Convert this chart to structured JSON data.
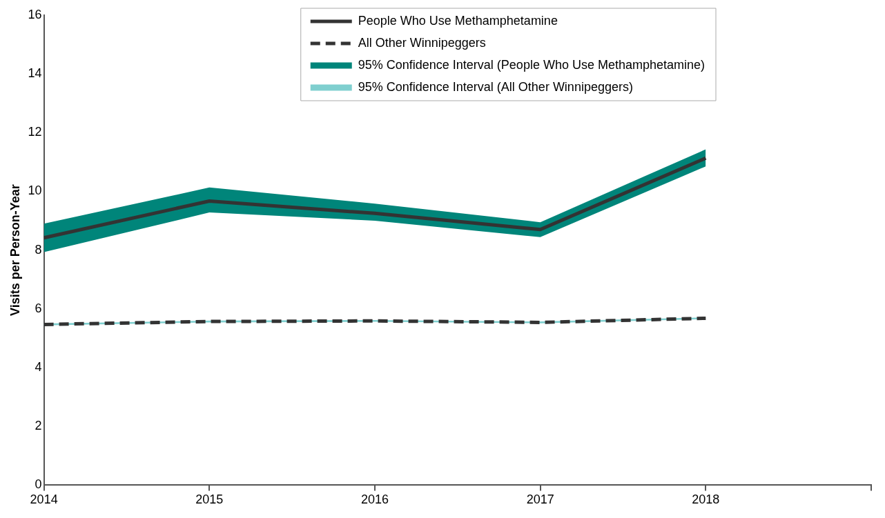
{
  "chart_data": {
    "type": "line",
    "ylabel": "Visits per Person-Year",
    "x": [
      2014,
      2015,
      2016,
      2017,
      2018
    ],
    "xlim": [
      2014,
      2019
    ],
    "xticks": [
      2014,
      2015,
      2016,
      2017,
      2018,
      {
        "value": 2019,
        "label": null
      }
    ],
    "ylim": [
      0,
      16
    ],
    "yticks": [
      0,
      2,
      4,
      6,
      8,
      10,
      12,
      14,
      16
    ],
    "grid": false,
    "legend": "top right",
    "marker": "none",
    "series": [
      {
        "name": "People Who Use Methamphetamine",
        "type": "line",
        "color": "#333333",
        "line_style": "solid",
        "values": [
          8.42,
          9.67,
          9.25,
          8.7,
          11.13
        ]
      },
      {
        "name": "All Other Winnipeggers",
        "type": "line",
        "color": "#333333",
        "line_style": "dashed",
        "values": [
          5.47,
          5.57,
          5.59,
          5.54,
          5.68
        ]
      },
      {
        "name": "95% Confidence Interval (People Who Use Methamphetamine)",
        "type": "area",
        "color": "#00857a",
        "values": [
          null,
          null,
          null,
          null,
          null
        ],
        "lower": [
          7.93,
          9.28,
          9.0,
          8.44,
          10.85
        ],
        "upper": [
          8.9,
          10.13,
          9.58,
          8.95,
          11.43
        ]
      },
      {
        "name": "95% Confidence Interval (All Other Winnipeggers)",
        "type": "area",
        "color": "#7fcfcf",
        "values": [
          null,
          null,
          null,
          null,
          null
        ],
        "lower": [
          5.44,
          5.54,
          5.56,
          5.51,
          5.65
        ],
        "upper": [
          5.5,
          5.6,
          5.62,
          5.57,
          5.71
        ]
      }
    ]
  }
}
